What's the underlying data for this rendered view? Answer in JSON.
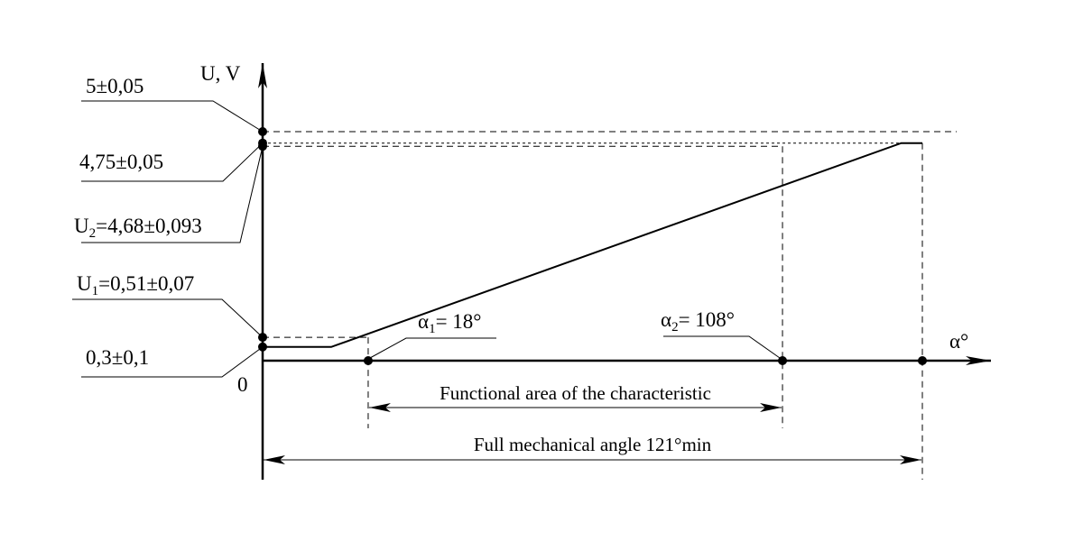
{
  "chart_data": {
    "type": "line",
    "title": "",
    "xlabel": "α°",
    "ylabel": "U, V",
    "origin_label": "0",
    "xlim": [
      0,
      125
    ],
    "ylim": [
      0,
      5.1
    ],
    "series": [
      {
        "x": [
          0,
          13,
          121,
          121
        ],
        "y": [
          0.3,
          0.3,
          4.75,
          4.75
        ]
      }
    ],
    "points": {
      "x_alpha1": 20,
      "x_alpha2": 98.5,
      "x_full": 125,
      "x_plateau_end": 125
    },
    "y_levels": [
      {
        "name": "u5",
        "value": 5.0,
        "label": "5±0,05"
      },
      {
        "name": "u475",
        "value": 4.75,
        "label": "4,75±0,05"
      },
      {
        "name": "u2",
        "value": 4.68,
        "prefix": "U",
        "sub": "2",
        "suffix": "=4,68±0,093"
      },
      {
        "name": "u1",
        "value": 0.51,
        "prefix": "U",
        "sub": "1",
        "suffix": "=0,51±0,07"
      },
      {
        "name": "u03",
        "value": 0.3,
        "label": "0,3±0,1"
      }
    ],
    "annotations": {
      "alpha1": {
        "prefix": "α",
        "sub": "1",
        "suffix": "= 18°"
      },
      "alpha2": {
        "prefix": "α",
        "sub": "2",
        "suffix": "= 108°"
      },
      "functional_area": "Functional area of the characteristic",
      "full_angle": "Full mechanical angle 121°min"
    },
    "colors": {
      "line": "#000000",
      "background": "#ffffff"
    }
  }
}
